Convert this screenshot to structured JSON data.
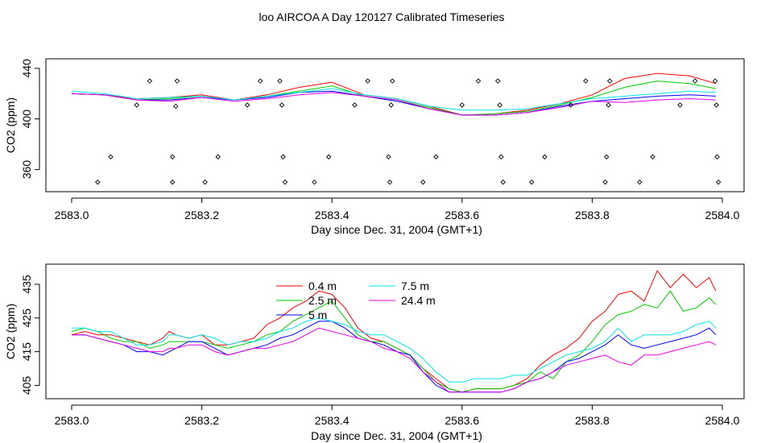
{
  "title": "loo AIRCOA A  Day 120127  Calibrated Timeseries",
  "chart_data": [
    {
      "type": "line+scatter",
      "xlabel": "Day since Dec. 31, 2004 (GMT+1)",
      "ylabel": "CO2 (ppm)",
      "xlim": [
        2583.0,
        2584.0
      ],
      "ylim": [
        345,
        445
      ],
      "xticks": [
        "2583.0",
        "2583.2",
        "2583.4",
        "2583.6",
        "2583.8",
        "2584.0"
      ],
      "yticks": [
        "360",
        "400",
        "440"
      ],
      "ytick_values": [
        360,
        400,
        440
      ],
      "grid": false,
      "x": [
        2583.0,
        2583.05,
        2583.1,
        2583.15,
        2583.2,
        2583.25,
        2583.3,
        2583.35,
        2583.4,
        2583.45,
        2583.5,
        2583.55,
        2583.6,
        2583.65,
        2583.7,
        2583.75,
        2583.8,
        2583.85,
        2583.9,
        2583.95,
        2583.99
      ],
      "series": [
        {
          "color": "#ff0000",
          "values": [
            420,
            419,
            416,
            417,
            419,
            415,
            419,
            425,
            429,
            419,
            416,
            410,
            403,
            404,
            407,
            412,
            419,
            432,
            436,
            434,
            428
          ]
        },
        {
          "color": "#00cc00",
          "values": [
            420,
            419,
            415,
            416,
            418,
            415,
            418,
            422,
            426,
            418,
            415,
            409,
            403,
            404,
            406,
            411,
            417,
            425,
            430,
            428,
            424
          ]
        },
        {
          "color": "#0000ff",
          "values": [
            420,
            419,
            415,
            415,
            417,
            415,
            417,
            421,
            422,
            418,
            414,
            408,
            403,
            403,
            405,
            410,
            414,
            416,
            418,
            419,
            418
          ]
        },
        {
          "color": "#00e5e5",
          "values": [
            422,
            420,
            416,
            417,
            418,
            415,
            418,
            421,
            424,
            419,
            416,
            410,
            407,
            407,
            408,
            412,
            416,
            418,
            420,
            422,
            421
          ]
        },
        {
          "color": "#e600e6",
          "values": [
            420,
            419,
            415,
            414,
            417,
            414,
            416,
            419,
            421,
            418,
            415,
            408,
            403,
            403,
            405,
            409,
            414,
            413,
            415,
            416,
            415
          ]
        }
      ],
      "calibration_points": [
        {
          "x": 2583.04,
          "y": 350
        },
        {
          "x": 2583.06,
          "y": 370
        },
        {
          "x": 2583.1,
          "y": 411
        },
        {
          "x": 2583.12,
          "y": 430
        },
        {
          "x": 2583.155,
          "y": 350
        },
        {
          "x": 2583.155,
          "y": 370
        },
        {
          "x": 2583.16,
          "y": 410
        },
        {
          "x": 2583.162,
          "y": 430
        },
        {
          "x": 2583.205,
          "y": 350
        },
        {
          "x": 2583.225,
          "y": 370
        },
        {
          "x": 2583.27,
          "y": 411
        },
        {
          "x": 2583.29,
          "y": 430
        },
        {
          "x": 2583.32,
          "y": 430
        },
        {
          "x": 2583.323,
          "y": 411
        },
        {
          "x": 2583.325,
          "y": 370
        },
        {
          "x": 2583.328,
          "y": 350
        },
        {
          "x": 2583.373,
          "y": 350
        },
        {
          "x": 2583.395,
          "y": 370
        },
        {
          "x": 2583.435,
          "y": 411
        },
        {
          "x": 2583.455,
          "y": 430
        },
        {
          "x": 2583.487,
          "y": 370
        },
        {
          "x": 2583.489,
          "y": 350
        },
        {
          "x": 2583.491,
          "y": 411
        },
        {
          "x": 2583.493,
          "y": 430
        },
        {
          "x": 2583.54,
          "y": 350
        },
        {
          "x": 2583.56,
          "y": 370
        },
        {
          "x": 2583.6,
          "y": 411
        },
        {
          "x": 2583.625,
          "y": 430
        },
        {
          "x": 2583.655,
          "y": 430
        },
        {
          "x": 2583.658,
          "y": 411
        },
        {
          "x": 2583.66,
          "y": 370
        },
        {
          "x": 2583.663,
          "y": 350
        },
        {
          "x": 2583.707,
          "y": 350
        },
        {
          "x": 2583.727,
          "y": 370
        },
        {
          "x": 2583.767,
          "y": 411
        },
        {
          "x": 2583.79,
          "y": 430
        },
        {
          "x": 2583.82,
          "y": 350
        },
        {
          "x": 2583.822,
          "y": 370
        },
        {
          "x": 2583.825,
          "y": 411
        },
        {
          "x": 2583.827,
          "y": 430
        },
        {
          "x": 2583.873,
          "y": 350
        },
        {
          "x": 2583.893,
          "y": 370
        },
        {
          "x": 2583.935,
          "y": 411
        },
        {
          "x": 2583.958,
          "y": 430
        },
        {
          "x": 2583.989,
          "y": 430
        },
        {
          "x": 2583.991,
          "y": 411
        },
        {
          "x": 2583.992,
          "y": 370
        },
        {
          "x": 2583.994,
          "y": 350
        }
      ]
    },
    {
      "type": "line",
      "xlabel": "Day since Dec. 31, 2004 (GMT+1)",
      "ylabel": "CO2 (ppm)",
      "xlim": [
        2583.0,
        2584.0
      ],
      "ylim": [
        402,
        440
      ],
      "xticks": [
        "2583.0",
        "2583.2",
        "2583.4",
        "2583.6",
        "2583.8",
        "2584.0"
      ],
      "yticks": [
        "405",
        "415",
        "425",
        "435"
      ],
      "ytick_values": [
        405,
        415,
        425,
        435
      ],
      "grid": false,
      "legend_position": "top-center",
      "x": [
        2583.0,
        2583.02,
        2583.04,
        2583.06,
        2583.08,
        2583.1,
        2583.12,
        2583.14,
        2583.15,
        2583.16,
        2583.18,
        2583.2,
        2583.22,
        2583.24,
        2583.26,
        2583.28,
        2583.3,
        2583.32,
        2583.34,
        2583.36,
        2583.38,
        2583.4,
        2583.42,
        2583.44,
        2583.46,
        2583.48,
        2583.5,
        2583.52,
        2583.54,
        2583.56,
        2583.58,
        2583.6,
        2583.62,
        2583.64,
        2583.66,
        2583.68,
        2583.7,
        2583.72,
        2583.74,
        2583.76,
        2583.78,
        2583.8,
        2583.82,
        2583.84,
        2583.86,
        2583.88,
        2583.9,
        2583.92,
        2583.94,
        2583.96,
        2583.98,
        2583.99
      ],
      "series": [
        {
          "name": "0.4 m",
          "color": "#ff0000",
          "values": [
            420,
            421,
            420,
            420,
            419,
            418,
            417,
            419,
            421,
            420,
            419,
            420,
            417,
            417,
            418,
            419,
            423,
            425,
            428,
            430,
            433,
            432,
            428,
            422,
            419,
            418,
            416,
            414,
            410,
            407,
            404,
            403,
            404,
            404,
            404,
            405,
            407,
            411,
            414,
            416,
            419,
            424,
            427,
            432,
            433,
            430,
            439,
            434,
            438,
            434,
            437,
            433
          ]
        },
        {
          "name": "2.5 m",
          "color": "#00cc00",
          "values": [
            421,
            422,
            421,
            419,
            418,
            418,
            416,
            417,
            418,
            418,
            418,
            418,
            417,
            416,
            417,
            418,
            420,
            421,
            424,
            426,
            428,
            430,
            425,
            420,
            418,
            418,
            416,
            414,
            410,
            406,
            404,
            403,
            404,
            404,
            404,
            405,
            406,
            409,
            407,
            412,
            414,
            418,
            423,
            426,
            427,
            429,
            428,
            433,
            427,
            428,
            431,
            429
          ]
        },
        {
          "name": "5 m",
          "color": "#0000ff",
          "values": [
            420,
            420,
            419,
            418,
            417,
            415,
            415,
            414,
            415,
            416,
            418,
            418,
            416,
            414,
            415,
            416,
            417,
            419,
            420,
            422,
            424,
            424,
            422,
            419,
            418,
            417,
            415,
            414,
            409,
            405,
            403,
            403,
            403,
            403,
            403,
            404,
            406,
            407,
            409,
            412,
            413,
            415,
            417,
            420,
            417,
            416,
            417,
            418,
            419,
            420,
            422,
            420
          ]
        },
        {
          "name": "7.5 m",
          "color": "#00e5e5",
          "values": [
            422,
            422,
            421,
            421,
            419,
            417,
            417,
            418,
            420,
            420,
            419,
            420,
            419,
            417,
            418,
            418,
            419,
            421,
            422,
            424,
            425,
            424,
            423,
            421,
            420,
            420,
            418,
            416,
            413,
            409,
            406,
            406,
            407,
            407,
            407,
            408,
            408,
            410,
            412,
            414,
            415,
            416,
            418,
            422,
            418,
            420,
            420,
            420,
            421,
            423,
            424,
            422
          ]
        },
        {
          "name": "24.4 m",
          "color": "#e600e6",
          "values": [
            420,
            420,
            419,
            418,
            417,
            416,
            415,
            415,
            416,
            416,
            417,
            417,
            415,
            414,
            415,
            416,
            416,
            417,
            418,
            420,
            422,
            421,
            420,
            419,
            418,
            416,
            415,
            413,
            409,
            406,
            403,
            403,
            403,
            403,
            403,
            404,
            406,
            407,
            409,
            411,
            412,
            413,
            414,
            412,
            411,
            414,
            414,
            415,
            416,
            417,
            418,
            417
          ]
        }
      ]
    }
  ]
}
